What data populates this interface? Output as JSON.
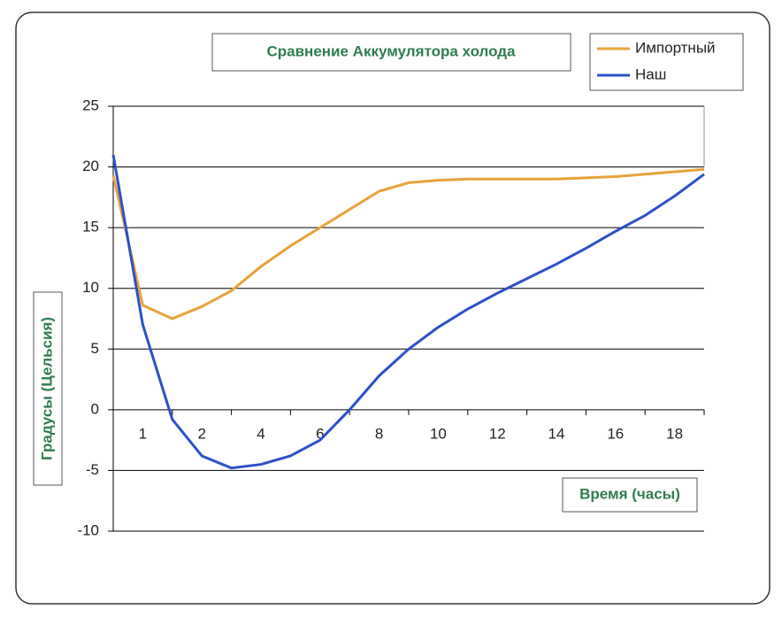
{
  "chart_data": {
    "type": "line",
    "title": "Сравнение Аккумулятора холода",
    "x_label": "Время (часы)",
    "y_label": "Градусы (Цельсия)",
    "categories": [
      null,
      "1",
      null,
      "2",
      null,
      "4",
      null,
      "6",
      null,
      "8",
      null,
      "10",
      null,
      "12",
      null,
      "14",
      null,
      "16",
      null,
      "18",
      null
    ],
    "series": [
      {
        "name": "Импортный",
        "color": "#e8a23a",
        "values": [
          19.3,
          8.6,
          7.5,
          8.5,
          9.8,
          11.8,
          13.5,
          15,
          16.5,
          18,
          18.7,
          18.9,
          19,
          19,
          19,
          19,
          19.1,
          19.2,
          19.4,
          19.6,
          19.8
        ]
      },
      {
        "name": "Наш",
        "color": "#2b50c8",
        "values": [
          21,
          7,
          -0.8,
          -3.8,
          -4.8,
          -4.5,
          -3.8,
          -2.5,
          0,
          2.8,
          5,
          6.8,
          8.3,
          9.6,
          10.8,
          12,
          13.3,
          14.7,
          16,
          17.6,
          19.4
        ]
      }
    ],
    "ylim": [
      -10,
      25
    ],
    "yticks": [
      -10,
      -5,
      0,
      5,
      10,
      15,
      20,
      25
    ],
    "grid": true
  }
}
